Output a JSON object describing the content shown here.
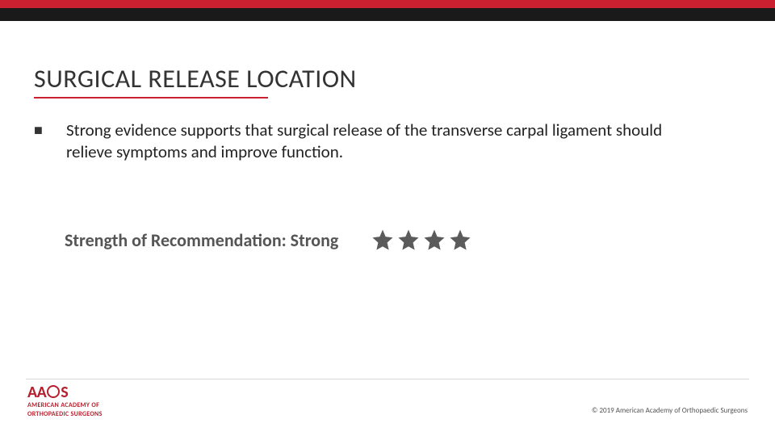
{
  "colors": {
    "red": "#cb2030",
    "dark": "#1a1a1a",
    "title": "#333333",
    "body": "#222222",
    "strength": "#555555",
    "star": "#5b5b5b",
    "rule": "#d9d9d9",
    "logo_red": "#b6202e"
  },
  "title": "SURGICAL RELEASE LOCATION",
  "bullet": {
    "marker": "■",
    "text": "Strong evidence supports that surgical release of the transverse carpal ligament should relieve symptoms and improve function."
  },
  "recommendation": {
    "label": "Strength of Recommendation: Strong",
    "stars_filled": 4,
    "stars_total": 4,
    "star_color": "#5b5b5b"
  },
  "logo": {
    "acronym_left": "AA",
    "acronym_right": "S",
    "line1": "AMERICAN ACADEMY OF",
    "line2": "ORTHOPAEDIC SURGEONS"
  },
  "copyright": "© 2019 American Academy of Orthopaedic Surgeons"
}
